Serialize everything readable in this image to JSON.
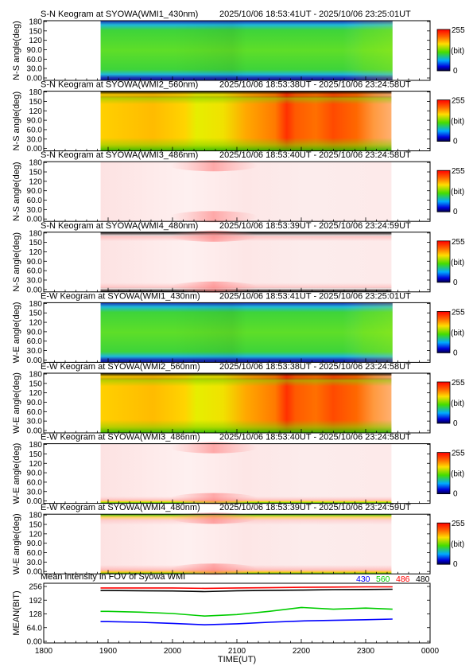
{
  "colorbar": {
    "max": "255",
    "min": "0",
    "unit": "(bit)"
  },
  "panels": [
    {
      "title": "S-N Keogram at SYOWA(WMI1_430nm)",
      "time_range": "2025/10/06 18:53:41UT - 2025/10/06 23:25:01UT",
      "ylabel": "N-S angle(deg)",
      "yticks": [
        "180",
        "150",
        "120",
        "90.0",
        "60.0",
        "30.0",
        "0.00"
      ],
      "style": "blue",
      "data_start_hhmm": 1853,
      "data_end_hhmm": 2325
    },
    {
      "title": "S-N Keogram at SYOWA(WMI2_560nm)",
      "time_range": "2025/10/06 18:53:38UT - 2025/10/06 23:24:58UT",
      "ylabel": "N-S angle(deg)",
      "yticks": [
        "180",
        "150",
        "120",
        "90.0",
        "60.0",
        "30.0",
        "0.00"
      ],
      "style": "green",
      "data_start_hhmm": 1853,
      "data_end_hhmm": 2324
    },
    {
      "title": "S-N Keogram at SYOWA(WMI3_486nm)",
      "time_range": "2025/10/06 18:53:40UT - 2025/10/06 23:24:58UT",
      "ylabel": "N-S angle(deg)",
      "yticks": [
        "180",
        "150",
        "120",
        "90.0",
        "60.0",
        "30.0",
        "0.00"
      ],
      "style": "pale",
      "data_start_hhmm": 1853,
      "data_end_hhmm": 2324
    },
    {
      "title": "S-N Keogram at SYOWA(WMI4_480nm)",
      "time_range": "2025/10/06 18:53:39UT - 2025/10/06 23:24:59UT",
      "ylabel": "N-S angle(deg)",
      "yticks": [
        "180",
        "150",
        "120",
        "90.0",
        "60.0",
        "30.0",
        "0.00"
      ],
      "style": "pale-edges",
      "data_start_hhmm": 1853,
      "data_end_hhmm": 2324
    },
    {
      "title": "E-W Keogram at SYOWA(WMI1_430nm)",
      "time_range": "2025/10/06 18:53:41UT - 2025/10/06 23:25:01UT",
      "ylabel": "W-E angle(deg)",
      "yticks": [
        "180",
        "150",
        "120",
        "90.0",
        "60.0",
        "30.0",
        "0.00"
      ],
      "style": "blue",
      "data_start_hhmm": 1853,
      "data_end_hhmm": 2325
    },
    {
      "title": "E-W Keogram at SYOWA(WMI2_560nm)",
      "time_range": "2025/10/06 18:53:38UT - 2025/10/06 23:24:58UT",
      "ylabel": "W-E angle(deg)",
      "yticks": [
        "180",
        "150",
        "120",
        "90.0",
        "60.0",
        "30.0",
        "0.00"
      ],
      "style": "green",
      "data_start_hhmm": 1853,
      "data_end_hhmm": 2324
    },
    {
      "title": "E-W Keogram at SYOWA(WMI3_486nm)",
      "time_range": "2025/10/06 18:53:40UT - 2025/10/06 23:24:58UT",
      "ylabel": "W-E angle(deg)",
      "yticks": [
        "180",
        "150",
        "120",
        "90.0",
        "60.0",
        "30.0",
        "0.00"
      ],
      "style": "pale-bottom",
      "data_start_hhmm": 1853,
      "data_end_hhmm": 2324
    },
    {
      "title": "E-W Keogram at SYOWA(WMI4_480nm)",
      "time_range": "2025/10/06 18:53:39UT - 2025/10/06 23:24:59UT",
      "ylabel": "W-E angle(deg)",
      "yticks": [
        "180",
        "150",
        "120",
        "90.0",
        "60.0",
        "30.0",
        "0.00"
      ],
      "style": "pale-both",
      "data_start_hhmm": 1853,
      "data_end_hhmm": 2324
    }
  ],
  "mean_panel": {
    "title": "Mean intensity in FOV of Syowa WMI",
    "legend": [
      {
        "label": "430",
        "color": "#0000ff"
      },
      {
        "label": "560",
        "color": "#00cc00"
      },
      {
        "label": "486",
        "color": "#ff0000"
      },
      {
        "label": "480",
        "color": "#000000"
      }
    ],
    "ylabel": "MEAN(BIT)",
    "yticks": [
      "256",
      "192",
      "128",
      "64.0",
      "0.00"
    ],
    "xlabel": "TIME(UT)",
    "xticks": [
      "1800",
      "1900",
      "2000",
      "2100",
      "2200",
      "2300",
      "0000"
    ]
  },
  "chart_data": {
    "type": "line",
    "title": "Mean intensity in FOV of Syowa WMI",
    "xlabel": "TIME(UT)",
    "ylabel": "MEAN(BIT)",
    "ylim": [
      0,
      256
    ],
    "xlim": [
      "1800",
      "0000"
    ],
    "x": [
      "1853",
      "1900",
      "1930",
      "2000",
      "2030",
      "2100",
      "2130",
      "2200",
      "2230",
      "2300",
      "2325"
    ],
    "series": [
      {
        "name": "430",
        "color": "#0000ff",
        "values": [
          92,
          92,
          89,
          84,
          77,
          82,
          89,
          95,
          98,
          101,
          104
        ]
      },
      {
        "name": "560",
        "color": "#00cc00",
        "values": [
          140,
          140,
          136,
          130,
          118,
          125,
          140,
          158,
          150,
          155,
          150
        ]
      },
      {
        "name": "486",
        "color": "#ff0000",
        "values": [
          249,
          249,
          249,
          249,
          247,
          249,
          250,
          252,
          253,
          254,
          254
        ]
      },
      {
        "name": "480",
        "color": "#000000",
        "values": [
          237,
          237,
          236,
          235,
          232,
          236,
          238,
          239,
          241,
          242,
          243
        ]
      }
    ]
  }
}
